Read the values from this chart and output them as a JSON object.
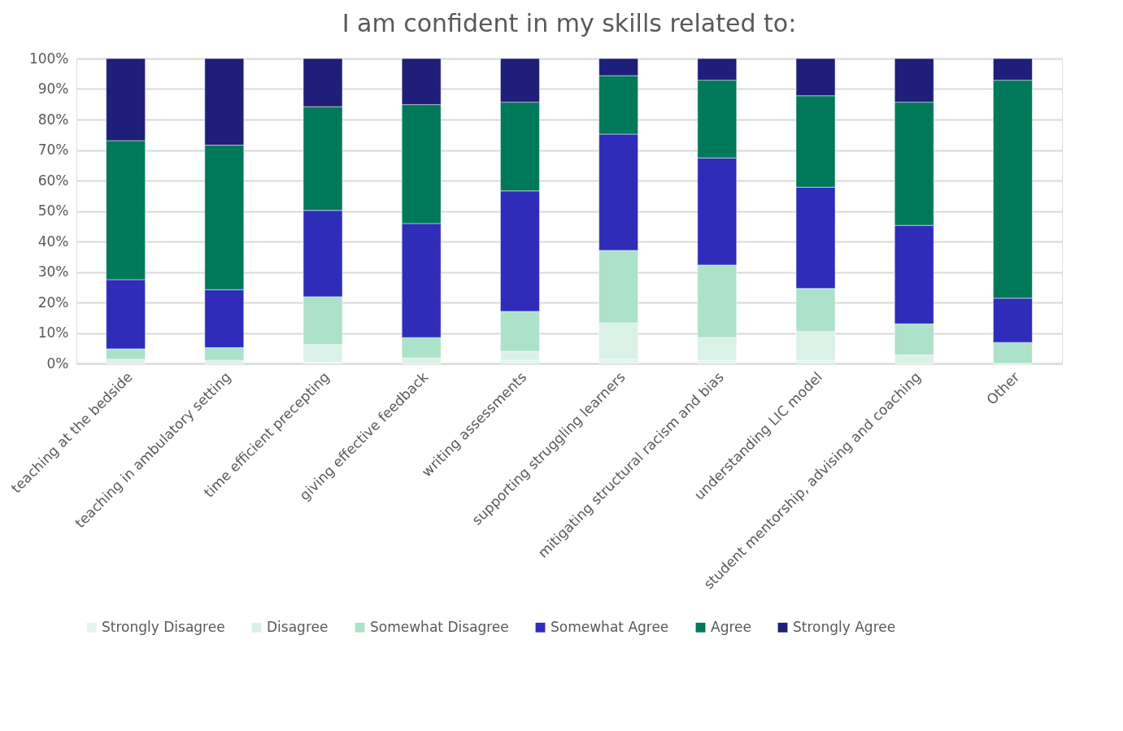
{
  "chart_data": {
    "type": "bar",
    "stacked": true,
    "title": "I am confident in my skills related to:",
    "categories": [
      "teaching at the bedside",
      "teaching in ambulatory setting",
      "time efficient precepting",
      "giving effective feedback",
      "writing assessments",
      "supporting struggling learners",
      "mitigating structural racism and bias",
      "understanding LIC model",
      "student mentorship, advising and coaching",
      "Other"
    ],
    "series": [
      {
        "name": "Strongly Disagree",
        "color": "#e3f5ed",
        "values": [
          0,
          0,
          0.4,
          0,
          1.1,
          1.4,
          1.0,
          1.0,
          0,
          0
        ]
      },
      {
        "name": "Disagree",
        "color": "#dbf1e7",
        "values": [
          1.4,
          1.1,
          5.8,
          1.8,
          2.9,
          11.9,
          7.5,
          9.5,
          2.8,
          0
        ]
      },
      {
        "name": "Somewhat Disagree",
        "color": "#abe2c9",
        "values": [
          3.4,
          4.1,
          15.7,
          6.7,
          13.1,
          23.8,
          23.8,
          14.1,
          10.2,
          6.9
        ]
      },
      {
        "name": "Somewhat Agree",
        "color": "#2e2cb8",
        "values": [
          22.7,
          19.0,
          28.3,
          37.4,
          39.5,
          38.1,
          35.1,
          33.2,
          32.3,
          14.5
        ]
      },
      {
        "name": "Agree",
        "color": "#00785a",
        "values": [
          45.6,
          47.4,
          34.0,
          39.0,
          29.1,
          19.2,
          25.5,
          30.0,
          40.4,
          71.5
        ]
      },
      {
        "name": "Strongly Agree",
        "color": "#1f1e78",
        "values": [
          26.9,
          28.4,
          15.8,
          15.1,
          14.3,
          5.6,
          7.1,
          12.2,
          14.3,
          7.1
        ]
      }
    ],
    "ylim": [
      0,
      100
    ],
    "yticks": [
      {
        "value": 0,
        "label": "0%"
      },
      {
        "value": 10,
        "label": "10%"
      },
      {
        "value": 20,
        "label": "20%"
      },
      {
        "value": 30,
        "label": "30%"
      },
      {
        "value": 40,
        "label": "40%"
      },
      {
        "value": 50,
        "label": "50%"
      },
      {
        "value": 60,
        "label": "60%"
      },
      {
        "value": 70,
        "label": "70%"
      },
      {
        "value": 80,
        "label": "80%"
      },
      {
        "value": 90,
        "label": "90%"
      },
      {
        "value": 100,
        "label": "100%"
      }
    ],
    "grid": "y",
    "legend": "bottom"
  }
}
